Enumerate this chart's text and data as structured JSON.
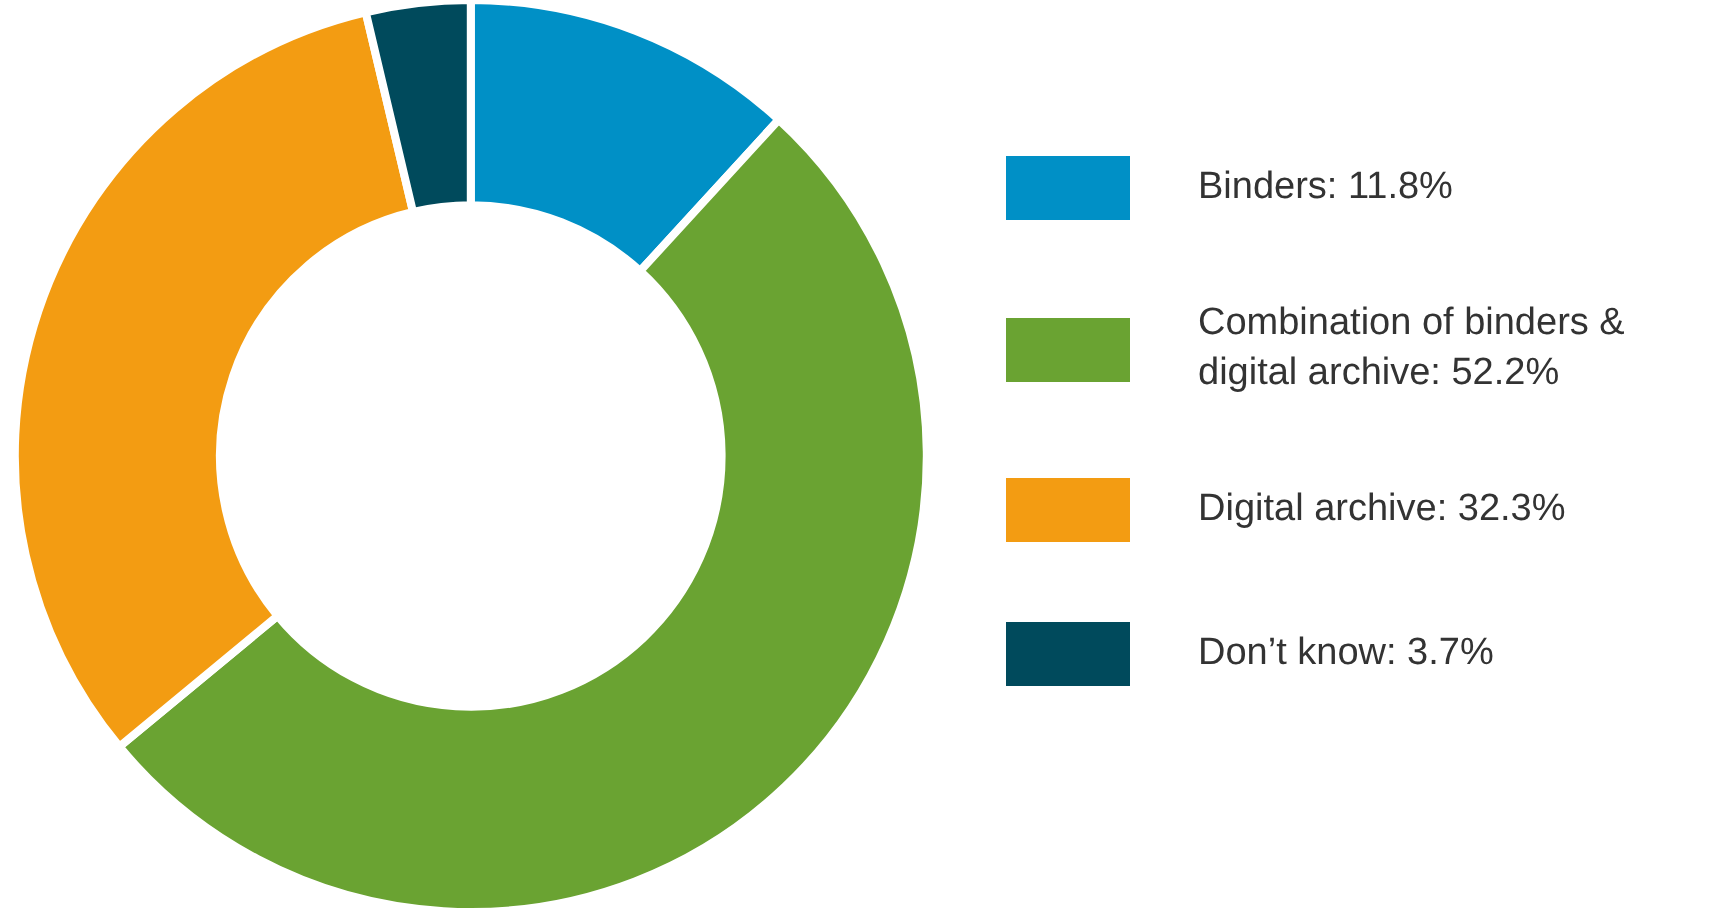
{
  "chart_data": {
    "type": "donut",
    "categories": [
      "Binders: 11.8%",
      "Combination of binders & digital archive: 52.2%",
      "Digital archive: 32.3%",
      "Don’t know: 3.7%"
    ],
    "values": [
      11.8,
      52.2,
      32.3,
      3.7
    ],
    "colors": [
      "#0090c6",
      "#6aa332",
      "#f39c12",
      "#004a5c"
    ],
    "legend": "right"
  }
}
